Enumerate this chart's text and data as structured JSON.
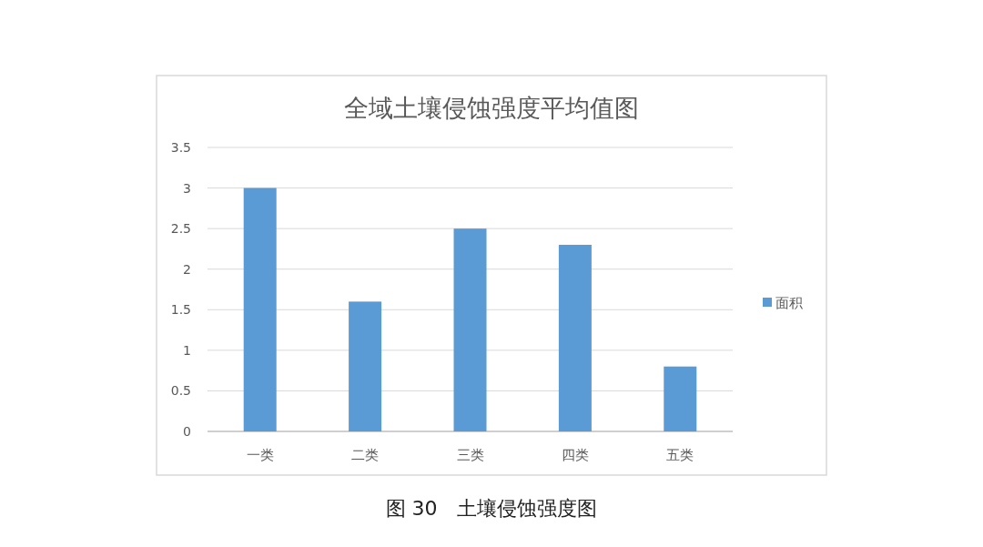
{
  "chart_data": {
    "type": "bar",
    "title": "全域土壤侵蚀强度平均值图",
    "categories": [
      "一类",
      "二类",
      "三类",
      "四类",
      "五类"
    ],
    "series": [
      {
        "name": "面积",
        "color": "#5b9bd5",
        "values": [
          3,
          1.6,
          2.5,
          2.3,
          0.8
        ]
      }
    ],
    "ylim": [
      0,
      3.5
    ],
    "yticks": [
      0,
      0.5,
      1,
      1.5,
      2,
      2.5,
      3,
      3.5
    ],
    "grid": "y",
    "legend": "right",
    "annotations": [
      "图 30　土壤侵蚀强度图"
    ]
  }
}
